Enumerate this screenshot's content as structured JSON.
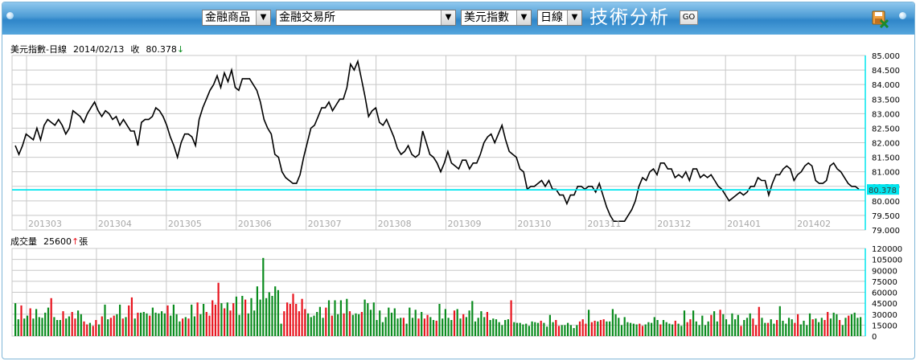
{
  "toolbar": {
    "select1": "金融商品",
    "select2": "金融交易所",
    "select3": "美元指數",
    "select4": "日線",
    "title": "技術分析",
    "go": "GO",
    "arrow": "▼"
  },
  "price_panel": {
    "label": "美元指數-日線",
    "date": "2014/02/13",
    "close_label": "收",
    "close_value": "80.378",
    "close_arrow": "↓"
  },
  "volume_panel": {
    "label": "成交量",
    "value": "25600",
    "arrow": "↑",
    "unit": "張"
  },
  "colors": {
    "line": "#000000",
    "grid": "#c8c8c8",
    "axis": "#00e5ee",
    "up": "#e8141e",
    "down": "#0a8c1e",
    "close_label_bg": "#00e5ee"
  },
  "chart_data": [
    {
      "type": "line",
      "x_ticks": [
        "201303",
        "201304",
        "201305",
        "201306",
        "201307",
        "201308",
        "201309",
        "201310",
        "201311",
        "201312",
        "201401",
        "201402"
      ],
      "y_ticks": [
        "85.000",
        "84.500",
        "84.000",
        "83.500",
        "83.000",
        "82.500",
        "82.000",
        "81.500",
        "81.000",
        "80.500",
        "80.000",
        "79.500",
        "79.000"
      ],
      "ylim": [
        79.0,
        85.0
      ],
      "reference_value": 80.378,
      "reference_label": "80.378",
      "values": [
        81.9,
        81.6,
        81.9,
        82.3,
        82.2,
        82.1,
        82.5,
        82.1,
        82.6,
        82.8,
        82.7,
        82.6,
        82.8,
        82.6,
        82.3,
        82.5,
        83.1,
        83.0,
        82.9,
        82.7,
        83.0,
        83.2,
        83.4,
        83.1,
        82.9,
        83.1,
        83.0,
        82.8,
        82.9,
        82.6,
        82.8,
        82.6,
        82.4,
        82.4,
        81.9,
        82.7,
        82.8,
        82.8,
        82.9,
        83.2,
        83.1,
        82.9,
        82.6,
        82.2,
        81.9,
        81.5,
        82.0,
        82.3,
        82.3,
        82.2,
        81.9,
        82.8,
        83.2,
        83.5,
        83.8,
        84.0,
        84.3,
        83.9,
        84.4,
        84.1,
        84.5,
        83.9,
        83.8,
        84.2,
        84.2,
        84.2,
        84.0,
        83.8,
        83.4,
        82.8,
        82.5,
        82.3,
        81.6,
        81.5,
        81.0,
        80.8,
        80.7,
        80.6,
        80.6,
        80.9,
        81.5,
        82.0,
        82.5,
        82.6,
        82.9,
        83.2,
        83.2,
        83.4,
        83.1,
        83.3,
        83.5,
        83.5,
        83.9,
        84.7,
        84.5,
        84.8,
        84.2,
        83.6,
        82.9,
        83.1,
        83.2,
        82.7,
        82.6,
        82.8,
        82.5,
        82.2,
        81.8,
        81.6,
        81.7,
        81.9,
        81.6,
        81.5,
        81.6,
        82.4,
        82.0,
        81.6,
        81.5,
        81.3,
        81.0,
        81.3,
        81.7,
        81.3,
        81.2,
        81.1,
        81.4,
        81.4,
        81.1,
        81.3,
        81.3,
        81.6,
        82.0,
        82.2,
        82.3,
        82.0,
        82.3,
        82.6,
        82.1,
        81.7,
        81.6,
        81.5,
        81.1,
        81.0,
        80.4,
        80.5,
        80.5,
        80.6,
        80.7,
        80.5,
        80.7,
        80.4,
        80.4,
        80.2,
        80.2,
        79.9,
        80.2,
        80.2,
        80.5,
        80.5,
        80.4,
        80.5,
        80.5,
        80.3,
        80.6,
        80.2,
        79.8,
        79.5,
        79.3,
        79.3,
        79.3,
        79.3,
        79.5,
        79.7,
        80.0,
        80.5,
        80.8,
        80.7,
        81.0,
        81.1,
        80.9,
        81.3,
        81.3,
        81.1,
        81.1,
        80.8,
        80.9,
        80.8,
        81.0,
        80.7,
        81.1,
        81.1,
        80.8,
        80.9,
        80.8,
        80.9,
        80.7,
        80.5,
        80.4,
        80.2,
        80.0,
        80.1,
        80.2,
        80.3,
        80.2,
        80.3,
        80.5,
        80.5,
        80.8,
        80.7,
        80.7,
        80.2,
        80.6,
        80.9,
        80.9,
        81.1,
        81.2,
        81.1,
        80.7,
        80.9,
        81.0,
        81.2,
        81.3,
        81.2,
        80.7,
        80.6,
        80.6,
        80.7,
        81.2,
        81.3,
        81.1,
        81.0,
        80.8,
        80.6,
        80.5,
        80.5,
        80.4
      ]
    },
    {
      "type": "bar",
      "y_ticks": [
        "120000",
        "105000",
        "90000",
        "75000",
        "60000",
        "45000",
        "30000",
        "15000",
        "0"
      ],
      "ylim": [
        0,
        120000
      ],
      "values": [
        45000,
        23000,
        42000,
        24000,
        28000,
        38000,
        24000,
        37000,
        26000,
        25000,
        32000,
        39000,
        52000,
        26000,
        22000,
        22000,
        34000,
        24000,
        27000,
        33000,
        24000,
        35000,
        30000,
        20000,
        16000,
        18000,
        14000,
        22000,
        16000,
        27000,
        43000,
        23000,
        25000,
        28000,
        30000,
        43000,
        24000,
        26000,
        42000,
        53000,
        24000,
        32000,
        32000,
        33000,
        31000,
        28000,
        39000,
        32000,
        31000,
        34000,
        31000,
        42000,
        28000,
        43000,
        30000,
        20000,
        24000,
        26000,
        24000,
        43000,
        27000,
        46000,
        30000,
        44000,
        33000,
        28000,
        49000,
        43000,
        73000,
        45000,
        38000,
        46000,
        35000,
        45000,
        54000,
        29000,
        55000,
        50000,
        31000,
        52000,
        35000,
        68000,
        50000,
        107000,
        52000,
        60000,
        55000,
        68000,
        63000,
        17000,
        34000,
        46000,
        44000,
        58000,
        44000,
        34000,
        51000,
        37000,
        31000,
        26000,
        28000,
        33000,
        40000,
        25000,
        39000,
        49000,
        28000,
        49000,
        30000,
        49000,
        31000,
        51000,
        34000,
        29000,
        31000,
        30000,
        33000,
        50000,
        45000,
        36000,
        46000,
        22000,
        35000,
        19000,
        26000,
        39000,
        32000,
        38000,
        24000,
        25000,
        25000,
        17000,
        39000,
        25000,
        36000,
        24000,
        33000,
        24000,
        29000,
        26000,
        22000,
        21000,
        44000,
        24000,
        37000,
        25000,
        22000,
        35000,
        37000,
        24000,
        30000,
        26000,
        35000,
        48000,
        20000,
        25000,
        34000,
        26000,
        33000,
        22000,
        24000,
        23000,
        19000,
        15000,
        22000,
        23000,
        49000,
        19000,
        18000,
        18000,
        16000,
        17000,
        14000,
        20000,
        19000,
        18000,
        21000,
        18000,
        13000,
        29000,
        19000,
        22000,
        14000,
        15000,
        15000,
        18000,
        15000,
        11000,
        15000,
        20000,
        23000,
        17000,
        36000,
        19000,
        21000,
        20000,
        22000,
        23000,
        20000,
        20000,
        37000,
        30000,
        25000,
        15000,
        26000,
        19000,
        18000,
        17000,
        16000,
        17000,
        14000,
        16000,
        19000,
        18000,
        26000,
        22000,
        16000,
        22000,
        19000,
        17000,
        16000,
        21000,
        17000,
        14000,
        35000,
        19000,
        23000,
        35000,
        20000,
        15000,
        28000,
        15000,
        20000,
        29000,
        34000,
        20000,
        36000,
        30000,
        23000,
        16000,
        31000,
        23000,
        29000,
        14000,
        22000,
        25000,
        31000,
        24000,
        15000,
        40000,
        25000,
        18000,
        18000,
        23000,
        17000,
        22000,
        41000,
        21000,
        17000,
        25000,
        23000,
        18000,
        30000,
        16000,
        21000,
        15000,
        31000,
        23000,
        24000,
        19000,
        25000,
        22000,
        33000,
        24000,
        32000,
        30000,
        22000,
        15000,
        25000,
        28000,
        30000,
        32000,
        25000,
        26000
      ],
      "colors": [
        "d",
        "d",
        "u",
        "d",
        "d",
        "u",
        "d",
        "d",
        "d",
        "d",
        "d",
        "d",
        "u",
        "d",
        "d",
        "d",
        "u",
        "d",
        "d",
        "u",
        "u",
        "d",
        "d",
        "u",
        "u",
        "d",
        "u",
        "u",
        "d",
        "u",
        "d",
        "d",
        "u",
        "u",
        "d",
        "d",
        "u",
        "d",
        "u",
        "u",
        "d",
        "u",
        "d",
        "d",
        "d",
        "u",
        "d",
        "d",
        "d",
        "d",
        "d",
        "u",
        "d",
        "d",
        "d",
        "d",
        "u",
        "d",
        "u",
        "d",
        "d",
        "u",
        "d",
        "d",
        "u",
        "u",
        "u",
        "u",
        "u",
        "d",
        "u",
        "d",
        "u",
        "u",
        "d",
        "d",
        "d",
        "u",
        "d",
        "d",
        "d",
        "d",
        "d",
        "d",
        "d",
        "d",
        "d",
        "d",
        "d",
        "d",
        "u",
        "u",
        "u",
        "u",
        "u",
        "u",
        "u",
        "u",
        "d",
        "d",
        "d",
        "d",
        "d",
        "d",
        "u",
        "d",
        "u",
        "d",
        "d",
        "d",
        "u",
        "d",
        "u",
        "d",
        "d",
        "d",
        "u",
        "d",
        "d",
        "d",
        "d",
        "d",
        "d",
        "d",
        "d",
        "d",
        "d",
        "d",
        "d",
        "d",
        "u",
        "d",
        "d",
        "d",
        "d",
        "u",
        "d",
        "u",
        "u",
        "d",
        "d",
        "u",
        "d",
        "d",
        "d",
        "d",
        "d",
        "u",
        "d",
        "d",
        "u",
        "d",
        "d",
        "d",
        "d",
        "d",
        "d",
        "d",
        "u",
        "d",
        "d",
        "d",
        "d",
        "d",
        "d",
        "d",
        "u",
        "d",
        "d",
        "d",
        "d",
        "d",
        "d",
        "d",
        "d",
        "d",
        "u",
        "d",
        "d",
        "d",
        "d",
        "u",
        "u",
        "d",
        "d",
        "d",
        "d",
        "d",
        "d",
        "u",
        "u",
        "u",
        "d",
        "u",
        "u",
        "d",
        "u",
        "u",
        "d",
        "d",
        "d",
        "d",
        "d",
        "d",
        "d",
        "d",
        "d",
        "d",
        "d",
        "u",
        "u",
        "d",
        "d",
        "d",
        "d",
        "d",
        "u",
        "d",
        "d",
        "d",
        "d",
        "u",
        "d",
        "d",
        "d",
        "u",
        "u",
        "d",
        "d",
        "d",
        "d",
        "d",
        "d",
        "u",
        "d",
        "d",
        "u",
        "d",
        "d",
        "d",
        "d",
        "d",
        "d",
        "u",
        "d",
        "d",
        "d",
        "u",
        "u",
        "u",
        "d",
        "d",
        "u",
        "d",
        "d",
        "u",
        "d",
        "d",
        "d",
        "d",
        "d",
        "u",
        "u",
        "d",
        "d",
        "d",
        "d",
        "u",
        "d",
        "d",
        "d",
        "u",
        "u",
        "d",
        "d",
        "d",
        "u",
        "d",
        "d",
        "u",
        "d",
        "d",
        "d",
        "d",
        "d"
      ]
    }
  ]
}
